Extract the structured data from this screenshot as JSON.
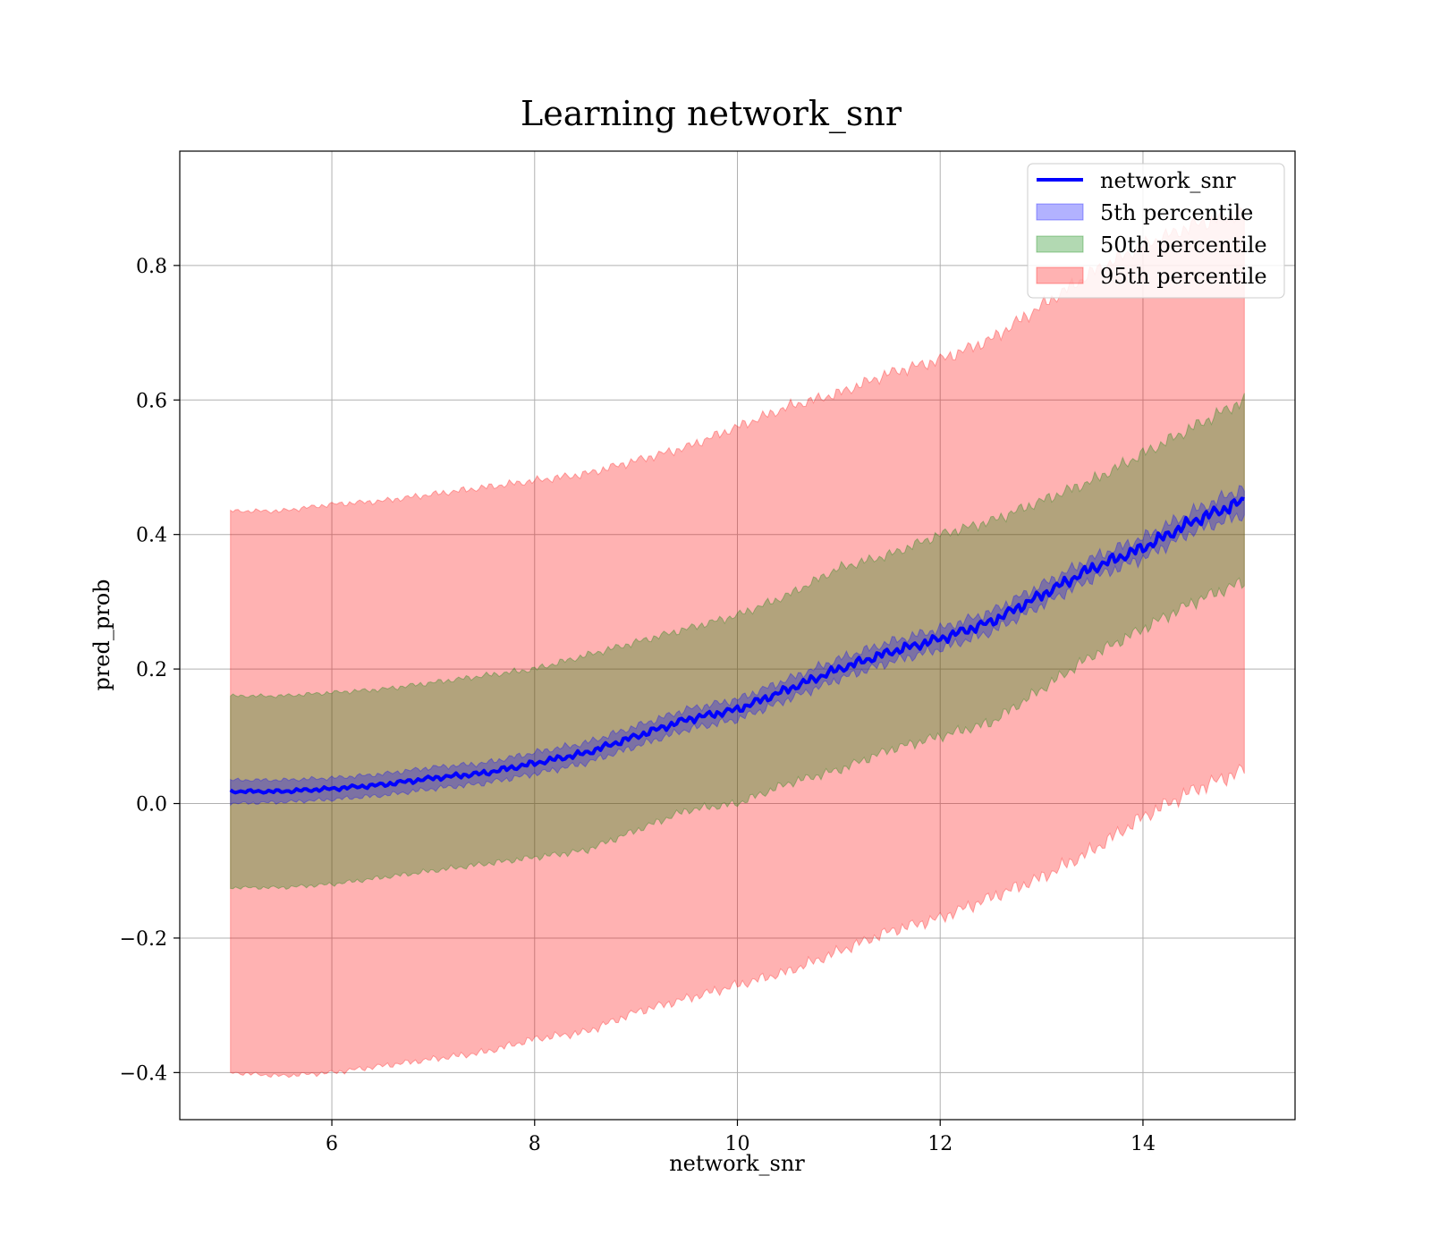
{
  "chart_data": {
    "type": "line",
    "title": "Learning network_snr",
    "xlabel": "network_snr",
    "ylabel": "pred_prob",
    "xlim": [
      4.5,
      15.5
    ],
    "ylim": [
      -0.47,
      0.97
    ],
    "grid": true,
    "legend_position": "top-right",
    "x_ticks": [
      6,
      8,
      10,
      12,
      14
    ],
    "y_ticks": [
      -0.4,
      -0.2,
      0.0,
      0.2,
      0.4,
      0.6,
      0.8
    ],
    "x_tick_labels": [
      "6",
      "8",
      "10",
      "12",
      "14"
    ],
    "y_tick_labels": [
      "−0.4",
      "−0.2",
      "0.0",
      "0.2",
      "0.4",
      "0.6",
      "0.8"
    ],
    "x": [
      5.0,
      5.5,
      6.0,
      6.5,
      7.0,
      7.5,
      8.0,
      8.5,
      9.0,
      9.5,
      10.0,
      10.5,
      11.0,
      11.5,
      12.0,
      12.5,
      13.0,
      13.5,
      14.0,
      14.5,
      15.0
    ],
    "series": [
      {
        "name": "network_snr",
        "kind": "line",
        "color": "#0000ff",
        "values": [
          0.018,
          0.018,
          0.022,
          0.028,
          0.038,
          0.045,
          0.06,
          0.075,
          0.1,
          0.125,
          0.14,
          0.17,
          0.2,
          0.225,
          0.245,
          0.27,
          0.31,
          0.35,
          0.38,
          0.42,
          0.45
        ]
      },
      {
        "name": "5th percentile",
        "kind": "band",
        "color": "#0000ff",
        "lower": [
          0.0,
          0.002,
          0.006,
          0.012,
          0.022,
          0.03,
          0.044,
          0.06,
          0.085,
          0.11,
          0.125,
          0.155,
          0.185,
          0.21,
          0.23,
          0.255,
          0.295,
          0.335,
          0.365,
          0.405,
          0.43
        ],
        "upper": [
          0.035,
          0.035,
          0.038,
          0.044,
          0.054,
          0.06,
          0.076,
          0.09,
          0.115,
          0.14,
          0.155,
          0.185,
          0.215,
          0.24,
          0.26,
          0.285,
          0.325,
          0.365,
          0.395,
          0.435,
          0.47
        ]
      },
      {
        "name": "50th percentile",
        "kind": "band",
        "color": "#008000",
        "lower": [
          -0.125,
          -0.125,
          -0.12,
          -0.11,
          -0.1,
          -0.09,
          -0.08,
          -0.07,
          -0.04,
          -0.01,
          0.0,
          0.03,
          0.05,
          0.08,
          0.1,
          0.12,
          0.17,
          0.22,
          0.26,
          0.3,
          0.33
        ],
        "upper": [
          0.16,
          0.16,
          0.165,
          0.17,
          0.18,
          0.19,
          0.2,
          0.22,
          0.24,
          0.26,
          0.28,
          0.31,
          0.35,
          0.37,
          0.4,
          0.42,
          0.45,
          0.48,
          0.52,
          0.56,
          0.6
        ]
      },
      {
        "name": "95th percentile",
        "kind": "band",
        "color": "#ff0000",
        "lower": [
          -0.4,
          -0.405,
          -0.4,
          -0.39,
          -0.38,
          -0.37,
          -0.35,
          -0.34,
          -0.31,
          -0.29,
          -0.27,
          -0.25,
          -0.22,
          -0.19,
          -0.17,
          -0.14,
          -0.11,
          -0.07,
          -0.02,
          0.02,
          0.05
        ],
        "upper": [
          0.435,
          0.435,
          0.445,
          0.45,
          0.46,
          0.47,
          0.48,
          0.49,
          0.51,
          0.53,
          0.56,
          0.59,
          0.61,
          0.64,
          0.66,
          0.69,
          0.74,
          0.79,
          0.83,
          0.86,
          0.88
        ]
      }
    ]
  }
}
